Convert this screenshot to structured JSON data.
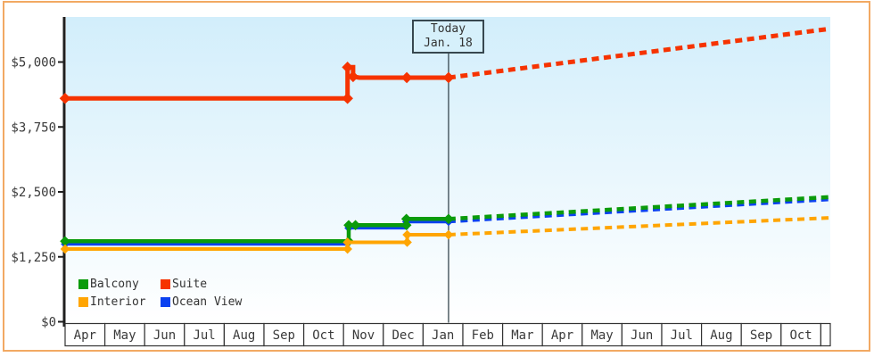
{
  "chart_data": {
    "type": "line",
    "title": "",
    "x_categories": [
      "Apr",
      "May",
      "Jun",
      "Jul",
      "Aug",
      "Sep",
      "Oct",
      "Nov",
      "Dec",
      "Jan",
      "Feb",
      "Mar",
      "Apr",
      "May",
      "Jun",
      "Jul",
      "Aug",
      "Sep",
      "Oct"
    ],
    "y_axis": {
      "ticks": [
        {
          "label": "$5,000",
          "value": 5000
        },
        {
          "label": "$3,750",
          "value": 3750
        },
        {
          "label": "$2,500",
          "value": 2500
        },
        {
          "label": "$1,250",
          "value": 1250
        },
        {
          "label": "$0",
          "value": 0
        }
      ],
      "ylim": [
        0,
        5860
      ],
      "gridlines": false
    },
    "today": {
      "line1": "Today",
      "line2": "Jan. 18",
      "x_pos": 9.64
    },
    "series": [
      {
        "key": "ocean-view",
        "name": "Ocean View",
        "color": "#0b41f0",
        "width": 3.5,
        "solid": [
          [
            0,
            1495,
            1
          ],
          [
            7.13,
            1495,
            0
          ],
          [
            7.13,
            1805,
            1
          ],
          [
            8.58,
            1805,
            0
          ],
          [
            8.58,
            1925,
            1
          ],
          [
            9.64,
            1925,
            1
          ]
        ],
        "dashed": [
          [
            9.64,
            1925,
            0
          ],
          [
            19.22,
            2350,
            0
          ]
        ]
      },
      {
        "key": "balcony",
        "name": "Balcony",
        "color": "#0a9b0b",
        "width": 4.5,
        "solid": [
          [
            0,
            1550,
            1
          ],
          [
            7.13,
            1550,
            1
          ],
          [
            7.13,
            1860,
            1
          ],
          [
            7.3,
            1860,
            1
          ],
          [
            8.58,
            1860,
            1
          ],
          [
            8.58,
            1980,
            1
          ],
          [
            9.64,
            1980,
            1
          ]
        ],
        "dashed": [
          [
            9.64,
            1980,
            0
          ],
          [
            19.22,
            2400,
            0
          ]
        ]
      },
      {
        "key": "interior",
        "name": "Interior",
        "color": "#ffa502",
        "width": 4,
        "solid": [
          [
            0,
            1400,
            1
          ],
          [
            7.1,
            1400,
            1
          ],
          [
            7.1,
            1530,
            1
          ],
          [
            8.6,
            1530,
            1
          ],
          [
            8.6,
            1675,
            1
          ],
          [
            9.64,
            1675,
            1
          ]
        ],
        "dashed": [
          [
            9.64,
            1675,
            0
          ],
          [
            19.22,
            2000,
            0
          ]
        ]
      },
      {
        "key": "suite",
        "name": "Suite",
        "color": "#f63300",
        "width": 5,
        "solid": [
          [
            0,
            4300,
            1
          ],
          [
            7.1,
            4300,
            1
          ],
          [
            7.1,
            4900,
            1
          ],
          [
            7.24,
            4900,
            0
          ],
          [
            7.24,
            4720,
            1
          ],
          [
            7.4,
            4700,
            0
          ],
          [
            8.59,
            4700,
            1
          ],
          [
            9.64,
            4700,
            1
          ]
        ],
        "dashed": [
          [
            9.64,
            4700,
            0
          ],
          [
            19.22,
            5640,
            0
          ]
        ]
      }
    ],
    "legend": [
      {
        "label": "Balcony",
        "color": "#0a9b0b"
      },
      {
        "label": "Suite",
        "color": "#f63300"
      },
      {
        "label": "Interior",
        "color": "#ffa502"
      },
      {
        "label": "Ocean View",
        "color": "#0b41f0"
      }
    ],
    "colors": {
      "frame_border": "#f2a963",
      "plot_bg_top": "#d2eefb",
      "plot_bg_bottom": "#ffffff",
      "axis": "#1f1f1f",
      "cell_border": "#333333",
      "text": "#3a3a3a",
      "today_box_bg": "#d6f0fb",
      "today_box_border": "#37474f"
    }
  }
}
